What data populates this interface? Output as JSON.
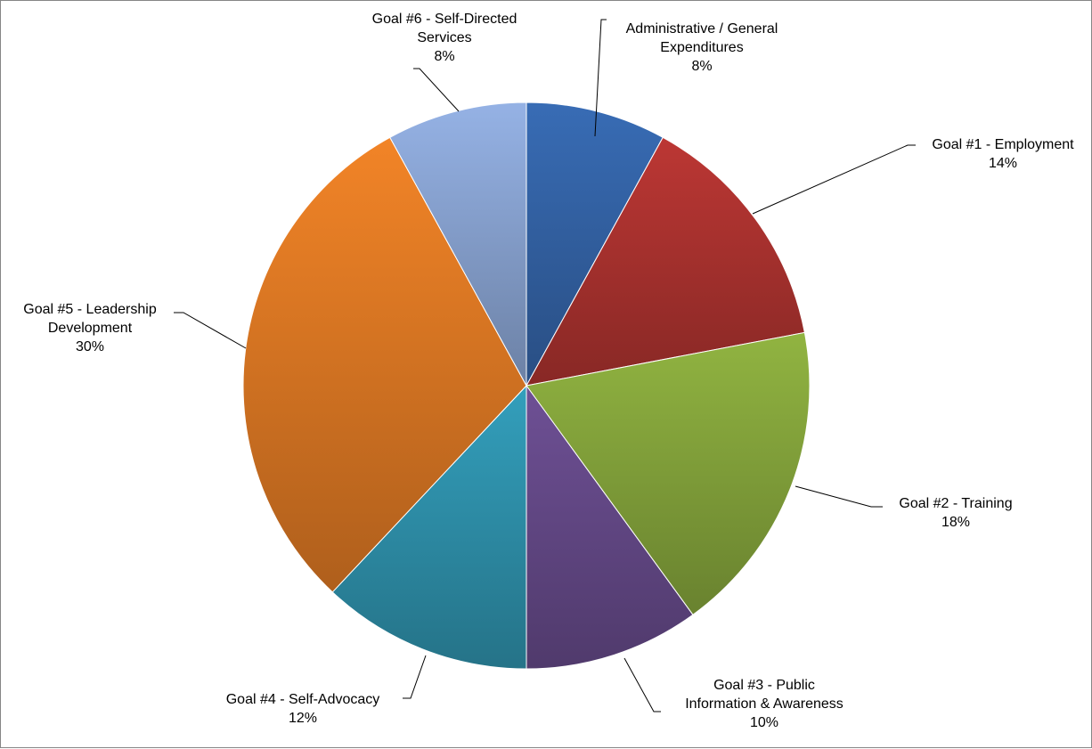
{
  "chart_data": {
    "type": "pie",
    "title": "",
    "start_angle_deg": 0,
    "direction": "clockwise",
    "legend": "none",
    "slices": [
      {
        "label_lines": [
          "Administrative / General",
          "Expenditures"
        ],
        "percent_label": "8%",
        "value": 8,
        "color": "#3464A8"
      },
      {
        "label_lines": [
          "Goal #1 - Employment"
        ],
        "percent_label": "14%",
        "value": 14,
        "color": "#AE3330"
      },
      {
        "label_lines": [
          "Goal #2 - Training"
        ],
        "percent_label": "18%",
        "value": 18,
        "color": "#86A73C"
      },
      {
        "label_lines": [
          "Goal #3 - Public",
          "Information & Awareness"
        ],
        "percent_label": "10%",
        "value": 10,
        "color": "#664A8A"
      },
      {
        "label_lines": [
          "Goal #4 - Self-Advocacy"
        ],
        "percent_label": "12%",
        "value": 12,
        "color": "#2F93AE"
      },
      {
        "label_lines": [
          "Goal #5 - Leadership",
          "Development"
        ],
        "percent_label": "30%",
        "value": 30,
        "color": "#E07A24"
      },
      {
        "label_lines": [
          "Goal #6 - Self-Directed",
          "Services"
        ],
        "percent_label": "8%",
        "value": 8,
        "color": "#8AA5D4"
      }
    ]
  }
}
